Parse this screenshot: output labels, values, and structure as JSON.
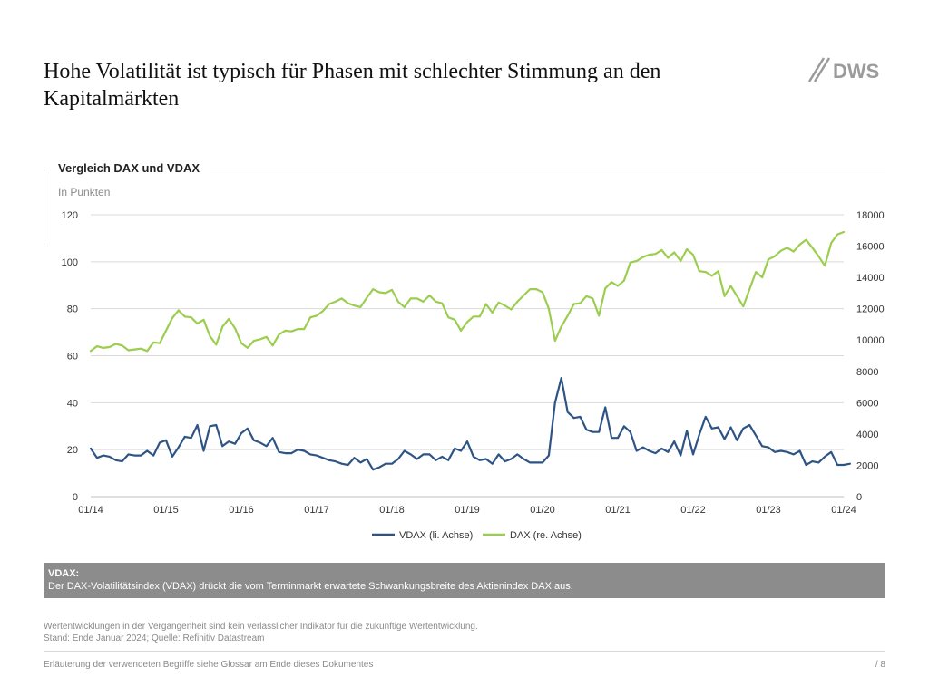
{
  "slide": {
    "title": "Hohe Volatilität ist typisch für Phasen mit schlechter Stimmung an den Kapitalmärkten",
    "logo_text": "DWS",
    "panel_title": "Vergleich DAX und VDAX",
    "panel_subtitle": "In Punkten"
  },
  "note": {
    "title": "VDAX:",
    "text": "Der DAX-Volatilitätsindex (VDAX) drückt die vom Terminmarkt erwartete Schwankungsbreite des Aktienindex DAX aus."
  },
  "disclaimer": {
    "line1": "Wertentwicklungen in der Vergangenheit sind kein verlässlicher Indikator für die zukünftige Wertentwicklung.",
    "line2": "Stand: Ende Januar 2024; Quelle: Refinitiv Datastream"
  },
  "footer": {
    "text": "Erläuterung der verwendeten Begriffe siehe Glossar am Ende dieses Dokumentes",
    "page": "/  8"
  },
  "colors": {
    "vdax": "#2e5485",
    "dax": "#9bcd4f",
    "grid": "#d9d9d9",
    "note_bg": "#8c8c8c"
  },
  "chart_data": {
    "type": "line",
    "title": "Vergleich DAX und VDAX",
    "subtitle": "In Punkten",
    "x_start": 2014.0,
    "x_step": 0.0833333,
    "x_range": [
      2014.0,
      2024.0
    ],
    "x_ticks": [
      {
        "value": 2014,
        "label": "01/14"
      },
      {
        "value": 2015,
        "label": "01/15"
      },
      {
        "value": 2016,
        "label": "01/16"
      },
      {
        "value": 2017,
        "label": "01/17"
      },
      {
        "value": 2018,
        "label": "01/18"
      },
      {
        "value": 2019,
        "label": "01/19"
      },
      {
        "value": 2020,
        "label": "01/20"
      },
      {
        "value": 2021,
        "label": "01/21"
      },
      {
        "value": 2022,
        "label": "01/22"
      },
      {
        "value": 2023,
        "label": "01/23"
      },
      {
        "value": 2024,
        "label": "01/24"
      }
    ],
    "y_left": {
      "range": [
        0,
        120
      ],
      "ticks": [
        0,
        20,
        40,
        60,
        80,
        100,
        120
      ]
    },
    "y_right": {
      "range": [
        0,
        18000
      ],
      "ticks": [
        0,
        2000,
        4000,
        6000,
        8000,
        10000,
        12000,
        14000,
        16000,
        18000
      ]
    },
    "grid": true,
    "legend_position": "bottom",
    "series": [
      {
        "name": "VDAX (li. Achse)",
        "axis": "left",
        "values": [
          20.5,
          16.5,
          17.5,
          17.0,
          15.5,
          15.0,
          18.0,
          17.5,
          17.5,
          19.5,
          17.5,
          23.0,
          24.0,
          17.0,
          21.0,
          25.5,
          25.0,
          30.5,
          19.5,
          30.0,
          30.5,
          21.5,
          23.5,
          22.5,
          27.0,
          29.0,
          24.0,
          23.0,
          21.5,
          25.0,
          19.0,
          18.5,
          18.5,
          20.0,
          19.5,
          18.0,
          17.5,
          16.5,
          15.5,
          15.0,
          14.0,
          13.5,
          16.5,
          14.5,
          16.0,
          11.5,
          12.5,
          14.0,
          14.0,
          16.0,
          19.5,
          18.0,
          16.0,
          18.0,
          18.0,
          15.5,
          17.0,
          15.5,
          20.5,
          19.5,
          23.5,
          17.0,
          15.5,
          16.0,
          14.0,
          18.0,
          15.0,
          16.0,
          18.0,
          16.0,
          14.5,
          14.5,
          14.5,
          17.5,
          40.0,
          50.5,
          36.0,
          33.5,
          34.0,
          28.5,
          27.5,
          27.5,
          38.0,
          25.0,
          25.0,
          30.0,
          27.5,
          19.5,
          21.0,
          19.5,
          18.5,
          20.5,
          19.0,
          23.5,
          17.5,
          28.0,
          18.0,
          26.5,
          34.0,
          29.0,
          29.5,
          24.5,
          29.5,
          24.0,
          29.0,
          30.5,
          26.0,
          21.5,
          21.0,
          19.0,
          19.5,
          19.0,
          18.0,
          19.5,
          13.5,
          15.0,
          14.5,
          17.0,
          19.0,
          13.5,
          13.5,
          14.0
        ]
      },
      {
        "name": "DAX (re. Achse)",
        "axis": "right",
        "values": [
          9300,
          9600,
          9500,
          9550,
          9750,
          9650,
          9350,
          9400,
          9450,
          9300,
          9850,
          9800,
          10600,
          11400,
          11900,
          11500,
          11450,
          11050,
          11300,
          10250,
          9700,
          10850,
          11350,
          10750,
          9800,
          9500,
          9950,
          10050,
          10200,
          9650,
          10350,
          10600,
          10550,
          10700,
          10700,
          11450,
          11550,
          11850,
          12300,
          12450,
          12650,
          12350,
          12200,
          12100,
          12700,
          13250,
          13050,
          13000,
          13200,
          12450,
          12100,
          12650,
          12650,
          12450,
          12850,
          12450,
          12350,
          11450,
          11300,
          10600,
          11150,
          11500,
          11500,
          12300,
          11750,
          12400,
          12200,
          11950,
          12450,
          12850,
          13250,
          13250,
          13050,
          12000,
          9950,
          10850,
          11550,
          12300,
          12350,
          12800,
          12650,
          11550,
          13300,
          13700,
          13450,
          13800,
          14950,
          15050,
          15300,
          15450,
          15500,
          15750,
          15250,
          15600,
          15050,
          15800,
          15450,
          14400,
          14350,
          14100,
          14400,
          12800,
          13450,
          12800,
          12150,
          13250,
          14350,
          14000,
          15150,
          15350,
          15700,
          15900,
          15650,
          16100,
          16400,
          15900,
          15350,
          14750,
          16200,
          16750,
          16900
        ]
      }
    ]
  }
}
